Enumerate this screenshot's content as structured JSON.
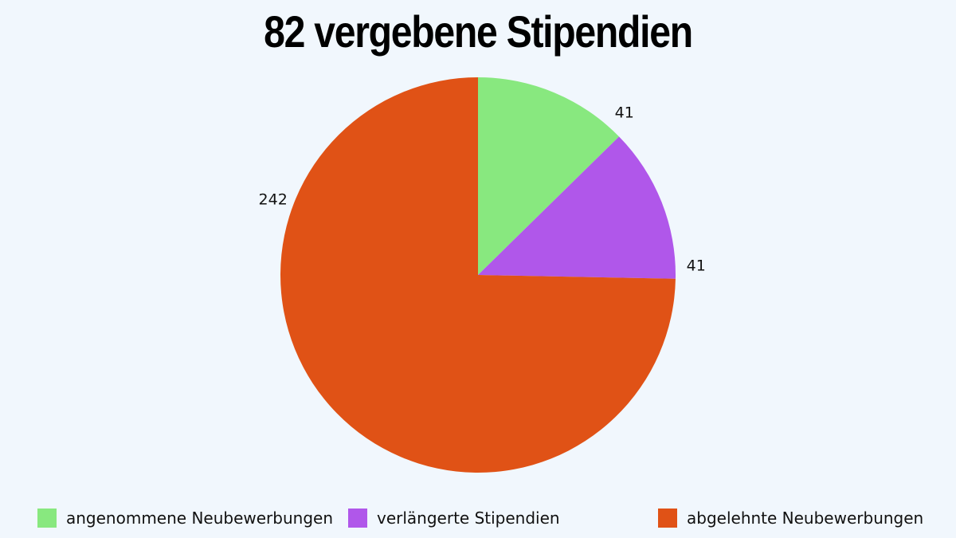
{
  "chart_data": {
    "type": "pie",
    "title": "82 vergebene Stipendien",
    "categories": [
      "angenommene Neubewerbungen",
      "verlängerte Stipendien",
      "abgelehnte Neubewerbungen"
    ],
    "values": [
      41,
      41,
      242
    ],
    "data_labels": [
      "41",
      "41",
      "242"
    ],
    "colors": [
      "#88e87f",
      "#b057ea",
      "#e05216"
    ],
    "legend_position": "bottom",
    "grid": false
  }
}
